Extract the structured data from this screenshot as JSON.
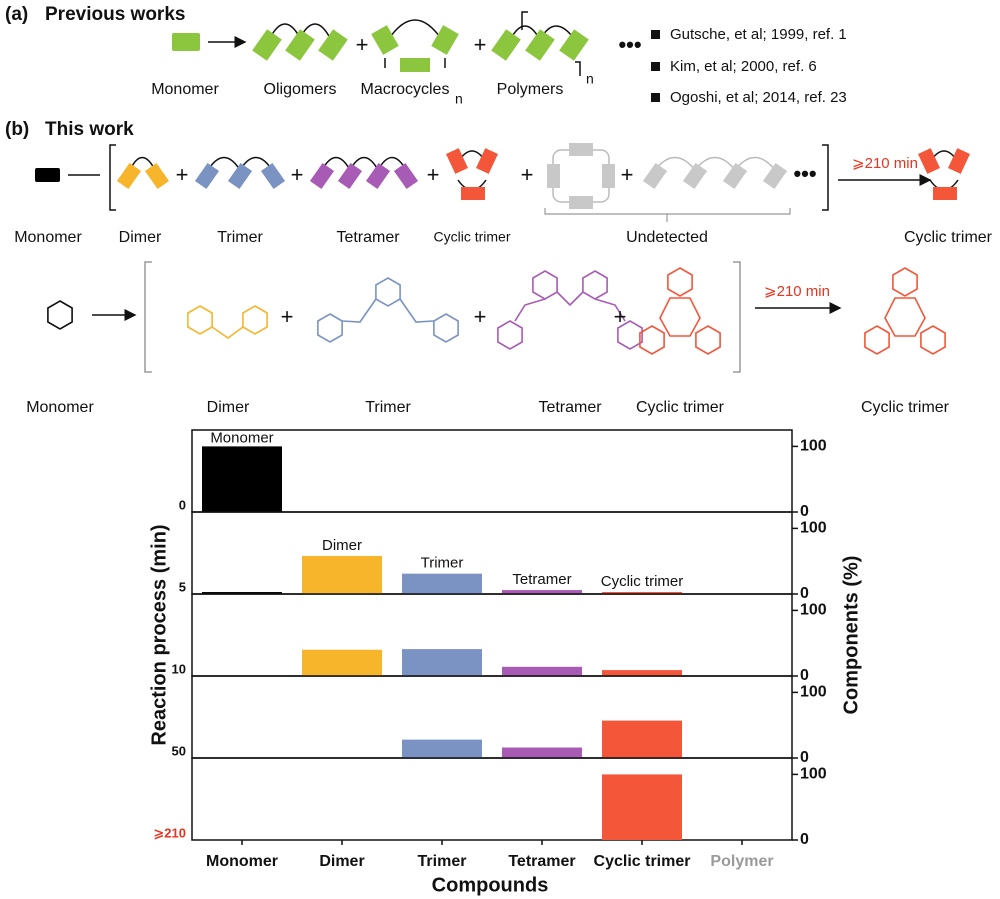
{
  "panel_a": {
    "label": "(a)",
    "title": "Previous works",
    "items": [
      "Monomer",
      "Oligomers",
      "Macrocycles",
      "Polymers"
    ],
    "subscript": "n",
    "plus": "+",
    "ellipsis": "•••",
    "references": [
      "Gutsche, et al; 1999, ref. 1",
      "Kim, et al; 2000, ref. 6",
      "Ogoshi, et al; 2014, ref. 23"
    ]
  },
  "panel_b": {
    "label": "(b)",
    "title": "This work",
    "plus": "+",
    "ellipsis": "•••",
    "schematic": {
      "labels": [
        "Monomer",
        "Dimer",
        "Trimer",
        "Tetramer",
        "Cyclic trimer"
      ],
      "undetected": "Undetected",
      "arrow": "⩾210 min",
      "product": "Cyclic trimer"
    },
    "structures": {
      "labels": [
        "Monomer",
        "Dimer",
        "Trimer",
        "Tetramer",
        "Cyclic trimer"
      ],
      "arrow": "⩾210 min",
      "product": "Cyclic trimer"
    }
  },
  "chart_data": {
    "type": "bar",
    "categories": [
      "Monomer",
      "Dimer",
      "Trimer",
      "Tetramer",
      "Cyclic trimer",
      "Polymer"
    ],
    "colors": [
      "#000000",
      "#f7b52c",
      "#7b93c2",
      "#a85bb5",
      "#f4563a",
      "#9a9a9a"
    ],
    "panels": [
      {
        "label": "0",
        "values": [
          100,
          0,
          0,
          0,
          0,
          0
        ]
      },
      {
        "label": "5",
        "values": [
          3,
          58,
          31,
          6,
          3,
          0
        ]
      },
      {
        "label": "10",
        "values": [
          0,
          40,
          41,
          14,
          9,
          0
        ]
      },
      {
        "label": "50",
        "values": [
          0,
          0,
          28,
          16,
          57,
          0
        ]
      },
      {
        "label": "⩾210",
        "values": [
          0,
          0,
          0,
          0,
          100,
          0
        ]
      }
    ],
    "ylim": [
      0,
      125
    ],
    "yticks": [
      0,
      100
    ],
    "xlabel": "Compounds",
    "ylabel": "Reaction process (min)",
    "y2label": "Components (%)"
  }
}
